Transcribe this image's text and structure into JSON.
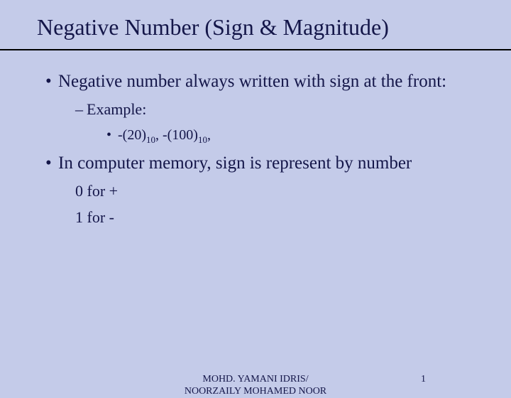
{
  "title": "Negative Number (Sign & Magnitude)",
  "bullets": {
    "b1": "Negative number always written with sign at the front:",
    "b1a": "Example:",
    "b1a1_pre": "-(20)",
    "b1a1_sub1": "10",
    "b1a1_mid": ", -(100)",
    "b1a1_sub2": "10",
    "b1a1_post": ",",
    "b2": "In computer memory, sign is represent by number",
    "b2a": "0 for +",
    "b2b": "1 for -"
  },
  "footer": {
    "author": "MOHD. YAMANI IDRIS/\nNOORZAILY MOHAMED NOOR",
    "page": "1"
  },
  "colors": {
    "background": "#c4cbe9",
    "text": "#141649",
    "rule": "#000000"
  }
}
